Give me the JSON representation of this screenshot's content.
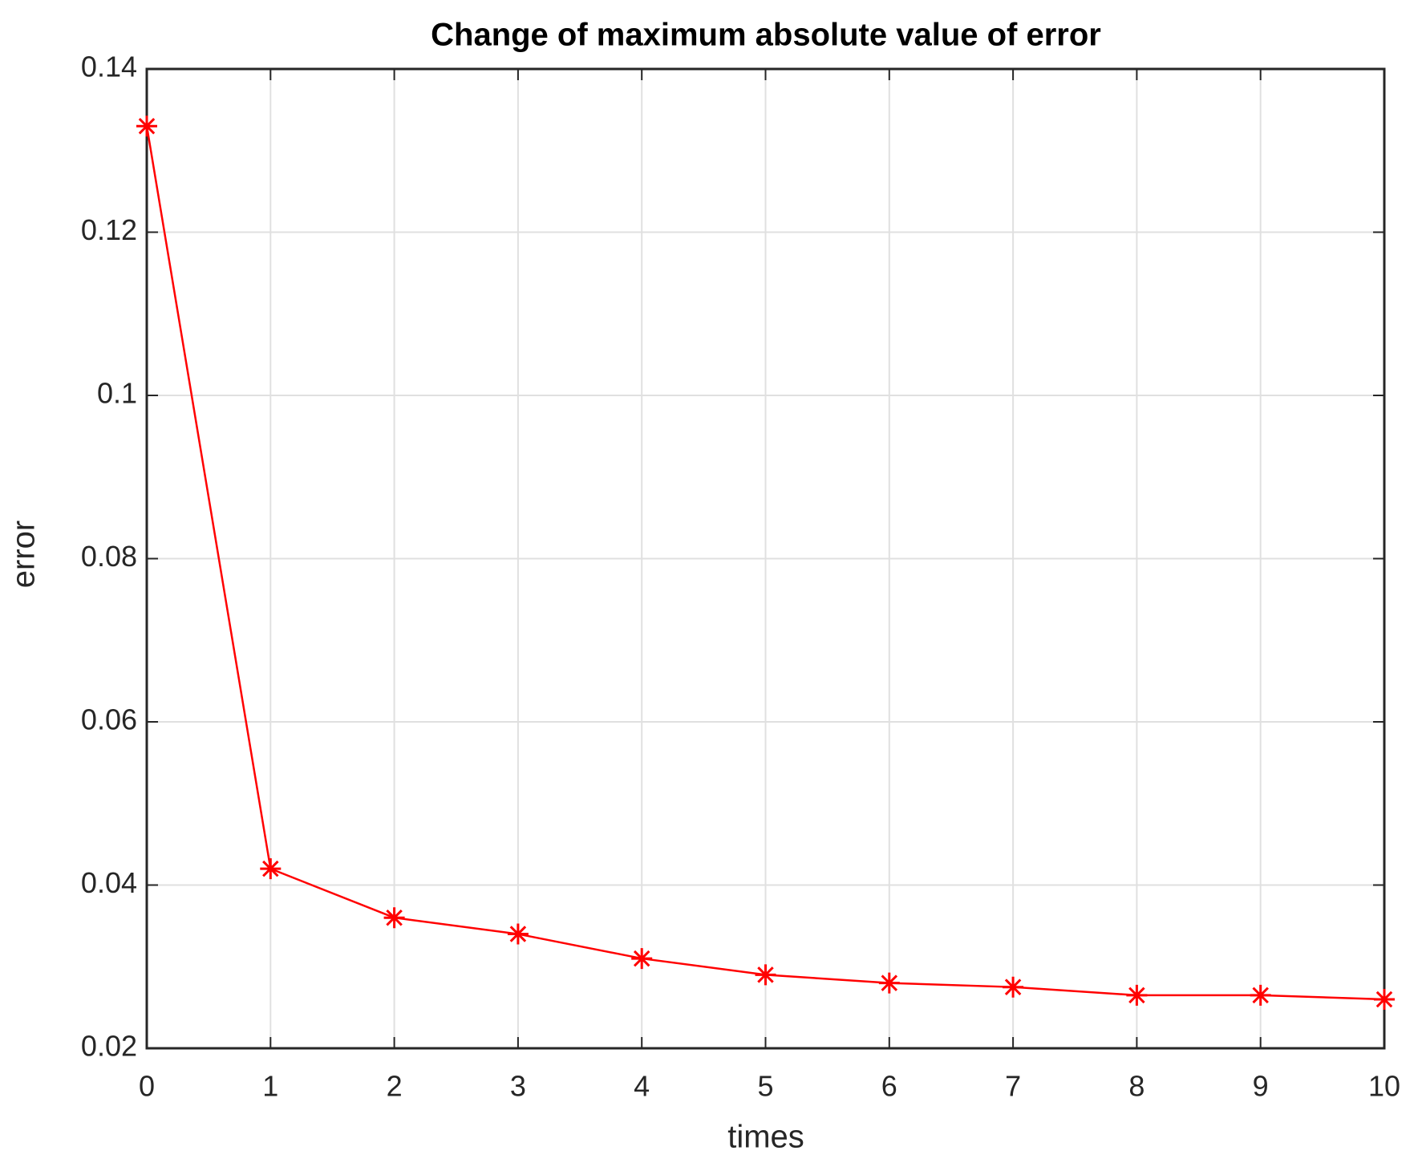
{
  "chart_data": {
    "type": "line",
    "title": "Change of maximum absolute value of error",
    "xlabel": "times",
    "ylabel": "error",
    "x": [
      0,
      1,
      2,
      3,
      4,
      5,
      6,
      7,
      8,
      9,
      10
    ],
    "values": [
      0.133,
      0.042,
      0.036,
      0.034,
      0.031,
      0.029,
      0.028,
      0.0275,
      0.0265,
      0.0265,
      0.026
    ],
    "color": "#ff0000",
    "xlim": [
      0,
      10
    ],
    "xticks": [
      0,
      1,
      2,
      3,
      4,
      5,
      6,
      7,
      8,
      9,
      10
    ],
    "ylim": [
      0.02,
      0.14
    ],
    "yticks": [
      0.02,
      0.04,
      0.06,
      0.08,
      0.1,
      0.12,
      0.14
    ],
    "grid": true
  }
}
